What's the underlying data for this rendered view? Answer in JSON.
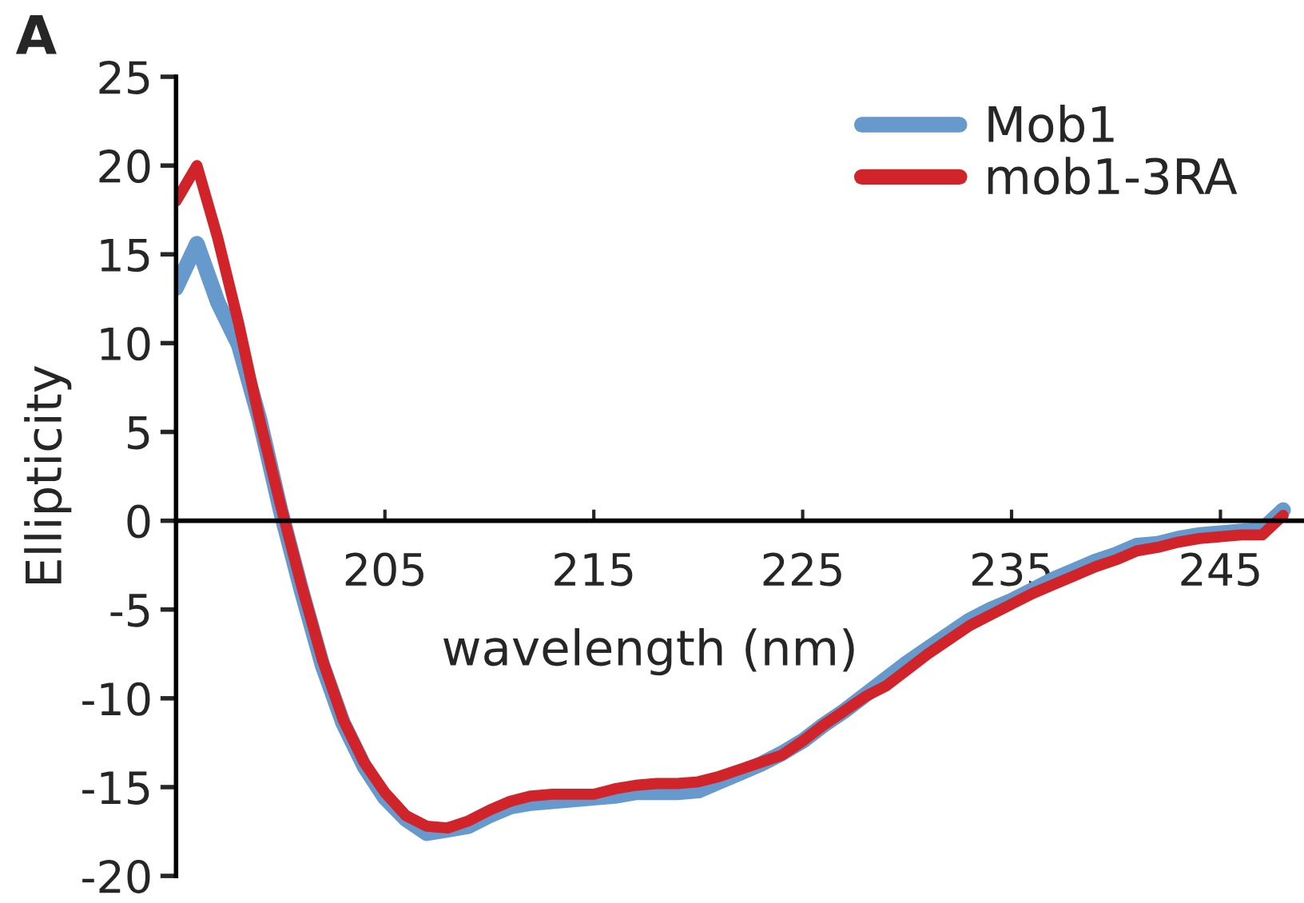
{
  "chart_data": {
    "type": "line",
    "xlabel": "wavelength (nm)",
    "ylabel": "Ellipticity",
    "annotations": [
      "A"
    ],
    "x": [
      195,
      196,
      197,
      198,
      199,
      200,
      201,
      202,
      203,
      204,
      205,
      206,
      207,
      208,
      209,
      210,
      211,
      212,
      213,
      214,
      215,
      216,
      217,
      218,
      219,
      220,
      221,
      222,
      223,
      224,
      225,
      226,
      227,
      228,
      229,
      230,
      231,
      232,
      233,
      234,
      235,
      236,
      237,
      238,
      239,
      240,
      241,
      242,
      243,
      244,
      245,
      246,
      247,
      248
    ],
    "series": [
      {
        "name": "Mob1",
        "color": "#6699cc",
        "values": [
          13.1,
          15.6,
          12.3,
          9.9,
          5.7,
          0.6,
          -3.9,
          -8.1,
          -11.4,
          -13.8,
          -15.6,
          -16.8,
          -17.6,
          -17.4,
          -17.2,
          -16.6,
          -16.1,
          -15.9,
          -15.8,
          -15.7,
          -15.6,
          -15.5,
          -15.3,
          -15.3,
          -15.3,
          -15.2,
          -14.7,
          -14.2,
          -13.7,
          -13.1,
          -12.4,
          -11.5,
          -10.7,
          -9.8,
          -8.9,
          -8.0,
          -7.2,
          -6.4,
          -5.6,
          -5.0,
          -4.5,
          -3.9,
          -3.3,
          -2.8,
          -2.3,
          -1.9,
          -1.4,
          -1.3,
          -1.0,
          -0.8,
          -0.7,
          -0.6,
          -0.5,
          0.6
        ]
      },
      {
        "name": "mob1-3RA",
        "color": "#d0232a",
        "values": [
          18.0,
          20.0,
          15.9,
          11.1,
          5.7,
          0.9,
          -3.6,
          -7.8,
          -11.2,
          -13.6,
          -15.3,
          -16.6,
          -17.2,
          -17.3,
          -16.9,
          -16.3,
          -15.8,
          -15.5,
          -15.4,
          -15.4,
          -15.4,
          -15.1,
          -14.9,
          -14.8,
          -14.8,
          -14.7,
          -14.4,
          -14.0,
          -13.6,
          -13.2,
          -12.4,
          -11.5,
          -10.7,
          -9.9,
          -9.3,
          -8.4,
          -7.5,
          -6.7,
          -5.9,
          -5.3,
          -4.7,
          -4.1,
          -3.6,
          -3.1,
          -2.6,
          -2.2,
          -1.7,
          -1.5,
          -1.2,
          -1.0,
          -0.9,
          -0.8,
          -0.8,
          0.3
        ]
      }
    ],
    "xlim": [
      195,
      249
    ],
    "xticks": [
      205,
      215,
      225,
      235,
      245
    ],
    "ylim": [
      -20,
      25
    ],
    "yticks": [
      -20,
      -15,
      -10,
      -5,
      0,
      5,
      10,
      15,
      20,
      25
    ],
    "legend": "top right",
    "grid": false,
    "marker": "none",
    "line_style": "solid"
  }
}
